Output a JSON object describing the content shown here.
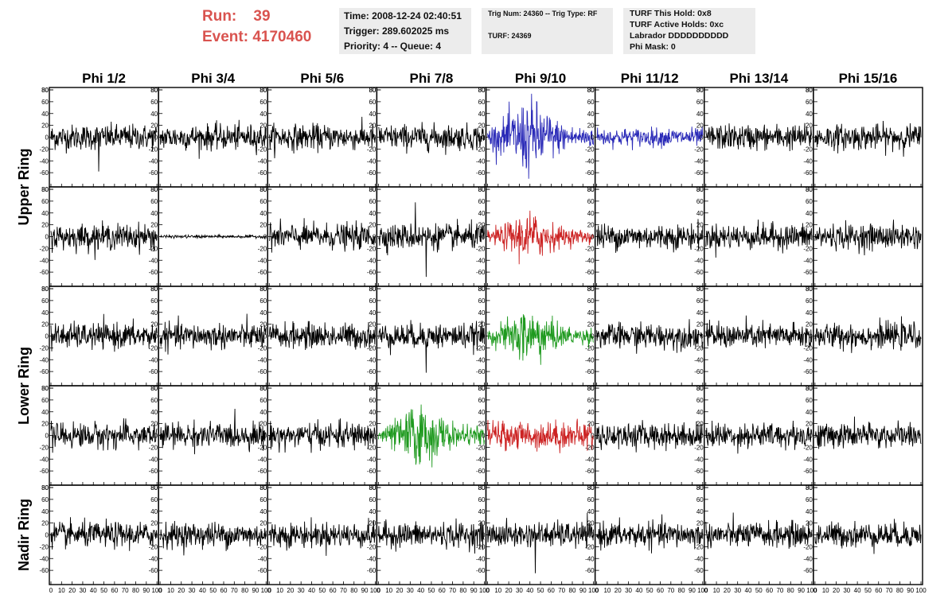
{
  "header": {
    "run_label": "Run:",
    "run_value": "39",
    "event_label": "Event:",
    "event_value": "4170460",
    "time_line": "Time: 2008-12-24 02:40:51",
    "trigger_line": "Trigger: 289.602025 ms",
    "priority_line": "Priority: 4 -- Queue: 4",
    "trig_line": "Trig Num: 24360 -- Trig Type: RF",
    "turf_line": "TURF: 24369",
    "turf_hold": "TURF This Hold: 0x8",
    "turf_active": "TURF Active Holds: 0xc",
    "labrador": "Labrador DDDDDDDDDD",
    "phi_mask": "Phi Mask: 0"
  },
  "colors": {
    "header_red": "#d9534f",
    "box_gray": "#ececec",
    "trace_black": "#000000",
    "trace_blue": "#2b2bb8",
    "trace_red": "#cc2222",
    "trace_green": "#1f9a1f"
  },
  "chart_data": {
    "type": "line",
    "title": "",
    "columns": [
      "Phi 1/2",
      "Phi 3/4",
      "Phi 5/6",
      "Phi 7/8",
      "Phi 9/10",
      "Phi 11/12",
      "Phi 13/14",
      "Phi 15/16"
    ],
    "ring_labels": [
      {
        "text": "Upper Ring",
        "rows": [
          0,
          1
        ]
      },
      {
        "text": "Lower Ring",
        "rows": [
          2,
          3
        ]
      },
      {
        "text": "Nadir Ring",
        "rows": [
          4,
          4
        ]
      }
    ],
    "rows": 5,
    "xlim": [
      0,
      100
    ],
    "ylim": [
      -80,
      80
    ],
    "x_ticks": [
      0,
      10,
      20,
      30,
      40,
      50,
      60,
      70,
      80,
      90,
      100
    ],
    "y_ticks": [
      -60,
      -40,
      -20,
      0,
      20,
      40,
      60,
      80
    ],
    "x_tick_labels_row": "0 10 20 30 40 50 60 70 80 90 100",
    "highlighted": [
      {
        "row": 0,
        "col": 4,
        "color": "blue",
        "amplitude": 60
      },
      {
        "row": 0,
        "col": 5,
        "color": "blue",
        "amplitude": 18
      },
      {
        "row": 1,
        "col": 4,
        "color": "red",
        "amplitude": 40
      },
      {
        "row": 2,
        "col": 4,
        "color": "green",
        "amplitude": 45
      },
      {
        "row": 3,
        "col": 3,
        "color": "green",
        "amplitude": 50
      },
      {
        "row": 3,
        "col": 4,
        "color": "red",
        "amplitude": 28
      }
    ],
    "quiet_panels": [
      {
        "row": 1,
        "col": 1,
        "amplitude": 3
      }
    ],
    "default_amplitude": 25,
    "peak_panels": [
      {
        "row": 0,
        "col": 0,
        "peak": -58
      },
      {
        "row": 1,
        "col": 3,
        "peak": -68
      },
      {
        "row": 1,
        "col": 3,
        "peak_high": 58
      },
      {
        "row": 2,
        "col": 3,
        "peak": -62
      },
      {
        "row": 4,
        "col": 4,
        "peak": -65
      }
    ]
  }
}
